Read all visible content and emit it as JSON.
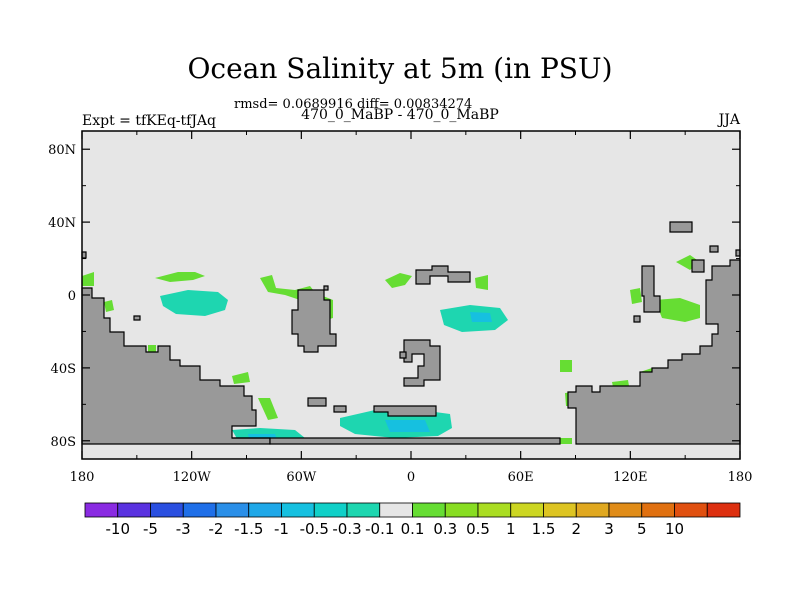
{
  "title": "Ocean Salinity at 5m (in PSU)",
  "stats": "rmsd= 0.0689916 diff= 0.00834274",
  "subtitle": "470_0_MaBP - 470_0_MaBP",
  "left_label": "Expt = tfKEq-tfJAq",
  "right_label": "JJA",
  "map": {
    "lon_range": [
      -180,
      180
    ],
    "lat_range": [
      -90,
      90
    ],
    "ocean_color": "#e6e6e6",
    "land_color": "#999999",
    "x_ticks": [
      {
        "v": -180,
        "label": "180"
      },
      {
        "v": -120,
        "label": "120W"
      },
      {
        "v": -60,
        "label": "60W"
      },
      {
        "v": 0,
        "label": "0"
      },
      {
        "v": 60,
        "label": "60E"
      },
      {
        "v": 120,
        "label": "120E"
      },
      {
        "v": 180,
        "label": "180"
      }
    ],
    "y_ticks": [
      {
        "v": 80,
        "label": "80N"
      },
      {
        "v": 40,
        "label": "40N"
      },
      {
        "v": 0,
        "label": "0"
      },
      {
        "v": -40,
        "label": "40S"
      },
      {
        "v": -80,
        "label": "80S"
      }
    ]
  },
  "colorbar": {
    "colors": [
      "#8a2be2",
      "#5a32e0",
      "#2a4fe0",
      "#1f6fe8",
      "#2a8fe8",
      "#1fa8e8",
      "#16c0e0",
      "#10d0c8",
      "#1ed6b0",
      "#e6e6e6",
      "#66dd33",
      "#88dd22",
      "#aadd22",
      "#ccd622",
      "#ddc422",
      "#e0a820",
      "#e08c18",
      "#e07010",
      "#e05010",
      "#dd3010"
    ],
    "labels": [
      "-10",
      "-5",
      "-3",
      "-2",
      "-1.5",
      "-1",
      "-0.5",
      "-0.3",
      "-0.1",
      "0.1",
      "0.3",
      "0.5",
      "1",
      "1.5",
      "2",
      "3",
      "5",
      "10"
    ]
  }
}
